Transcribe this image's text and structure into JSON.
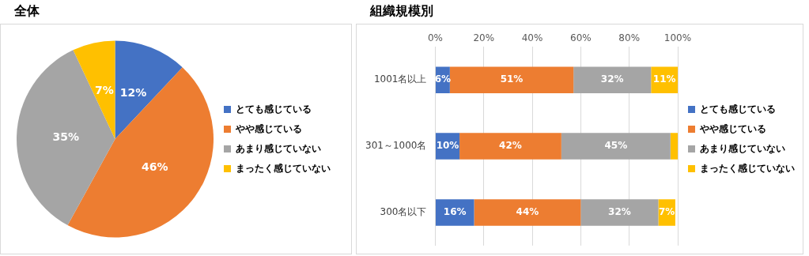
{
  "chart_data": [
    {
      "type": "pie",
      "title": "全体",
      "categories": [
        "とても感じている",
        "やや感じている",
        "あまり感じていない",
        "まったく感じていない"
      ],
      "values": [
        12,
        46,
        35,
        7
      ],
      "colors": [
        "#4472c4",
        "#ed7d31",
        "#a5a5a5",
        "#ffc000"
      ],
      "value_labels": [
        "12%",
        "46%",
        "35%",
        "7%"
      ],
      "legend": "right"
    },
    {
      "type": "bar",
      "title": "組織規模別",
      "orientation": "horizontal",
      "stacked": true,
      "categories": [
        "1001名以上",
        "301～1000名",
        "300名以下"
      ],
      "series": [
        {
          "name": "とても感じている",
          "color": "#4472c4",
          "values": [
            6,
            10,
            16
          ],
          "value_labels": [
            "6%",
            "10%",
            "16%"
          ]
        },
        {
          "name": "やや感じている",
          "color": "#ed7d31",
          "values": [
            51,
            42,
            44
          ],
          "value_labels": [
            "51%",
            "42%",
            "44%"
          ]
        },
        {
          "name": "あまり感じていない",
          "color": "#a5a5a5",
          "values": [
            32,
            45,
            32
          ],
          "value_labels": [
            "32%",
            "45%",
            "32%"
          ]
        },
        {
          "name": "まったく感じていない",
          "color": "#ffc000",
          "values": [
            11,
            3,
            7
          ],
          "value_labels": [
            "11%",
            null,
            "7%"
          ]
        }
      ],
      "xlim": [
        0,
        100
      ],
      "xticks": [
        {
          "value": 0,
          "label": "0%"
        },
        {
          "value": 20,
          "label": "20%"
        },
        {
          "value": 40,
          "label": "40%"
        },
        {
          "value": 60,
          "label": "60%"
        },
        {
          "value": 80,
          "label": "80%"
        },
        {
          "value": 100,
          "label": "100%"
        }
      ],
      "grid": "x",
      "legend": "right"
    }
  ]
}
